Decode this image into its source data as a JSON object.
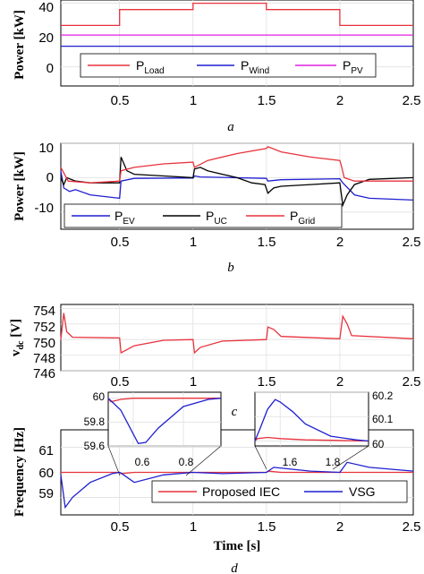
{
  "colors": {
    "load": "#e8323c",
    "wind": "#1f1fd0",
    "pv": "#e020e0",
    "ev": "#1f1fd0",
    "uc": "#000000",
    "grid": "#e8323c",
    "iec": "#e8323c",
    "vsg": "#1f1fd0"
  },
  "chart_data": [
    {
      "id": "a",
      "type": "line",
      "caption": "a",
      "ylabel": "Power [kW]",
      "xlabel": "",
      "xlim": [
        0.1,
        2.5
      ],
      "ylim": [
        -12,
        42
      ],
      "xticks": [
        "0.5",
        "1",
        "1.5",
        "2",
        "2.5"
      ],
      "yticks": [
        "0",
        "20",
        "40"
      ],
      "grid": true,
      "legend_position": "bottom",
      "series": [
        {
          "name": "P",
          "sub": "Load",
          "points": [
            [
              0.1,
              26
            ],
            [
              0.5,
              26
            ],
            [
              0.5,
              36
            ],
            [
              1,
              36
            ],
            [
              1,
              40
            ],
            [
              1.5,
              40
            ],
            [
              1.5,
              36
            ],
            [
              2,
              36
            ],
            [
              2,
              26
            ],
            [
              2.5,
              26
            ]
          ]
        },
        {
          "name": "P",
          "sub": "Wind",
          "points": [
            [
              0.1,
              13
            ],
            [
              2.5,
              13
            ]
          ]
        },
        {
          "name": "P",
          "sub": "PV",
          "points": [
            [
              0.1,
              20
            ],
            [
              2.5,
              20
            ]
          ]
        }
      ]
    },
    {
      "id": "b",
      "type": "line",
      "caption": "b",
      "ylabel": "Power [kW]",
      "xlabel": "",
      "xlim": [
        0.1,
        2.5
      ],
      "ylim": [
        -15,
        10
      ],
      "xticks": [
        "0.5",
        "1",
        "1.5",
        "2",
        "2.5"
      ],
      "yticks": [
        "-10",
        "0",
        "10"
      ],
      "grid": true,
      "legend_position": "bottom",
      "series": [
        {
          "name": "P",
          "sub": "EV",
          "points": [
            [
              0.1,
              2
            ],
            [
              0.12,
              -3
            ],
            [
              0.16,
              -4
            ],
            [
              0.2,
              -3.5
            ],
            [
              0.3,
              -5
            ],
            [
              0.5,
              -6
            ],
            [
              0.51,
              -1
            ],
            [
              0.6,
              -0.2
            ],
            [
              0.9,
              -0.1
            ],
            [
              1.0,
              -0.1
            ],
            [
              1.01,
              0.5
            ],
            [
              1.05,
              0.2
            ],
            [
              1.5,
              -0.2
            ],
            [
              1.51,
              -1
            ],
            [
              1.6,
              -0.6
            ],
            [
              2.0,
              -0.3
            ],
            [
              2.02,
              -1.5
            ],
            [
              2.1,
              -5
            ],
            [
              2.2,
              -6
            ],
            [
              2.5,
              -6.5
            ]
          ]
        },
        {
          "name": "P",
          "sub": "UC",
          "points": [
            [
              0.1,
              0
            ],
            [
              0.12,
              -2
            ],
            [
              0.14,
              0
            ],
            [
              0.2,
              -1
            ],
            [
              0.3,
              -1.5
            ],
            [
              0.5,
              -1.5
            ],
            [
              0.51,
              6
            ],
            [
              0.55,
              2
            ],
            [
              0.6,
              1
            ],
            [
              0.8,
              0.5
            ],
            [
              1.0,
              0
            ],
            [
              1.01,
              2.5
            ],
            [
              1.05,
              3
            ],
            [
              1.1,
              2
            ],
            [
              1.2,
              1
            ],
            [
              1.3,
              0
            ],
            [
              1.4,
              -1.5
            ],
            [
              1.49,
              -2
            ],
            [
              1.51,
              -4.5
            ],
            [
              1.55,
              -3
            ],
            [
              1.6,
              -2.5
            ],
            [
              1.8,
              -2
            ],
            [
              2.0,
              -1.5
            ],
            [
              2.02,
              -8
            ],
            [
              2.05,
              -5
            ],
            [
              2.1,
              -2
            ],
            [
              2.2,
              -0.5
            ],
            [
              2.5,
              0
            ]
          ]
        },
        {
          "name": "P",
          "sub": "Grid",
          "points": [
            [
              0.1,
              3
            ],
            [
              0.15,
              -1
            ],
            [
              0.3,
              -1.5
            ],
            [
              0.5,
              -1
            ],
            [
              0.51,
              2
            ],
            [
              0.6,
              3
            ],
            [
              0.8,
              4
            ],
            [
              1.0,
              4.5
            ],
            [
              1.01,
              3
            ],
            [
              1.1,
              5
            ],
            [
              1.3,
              7
            ],
            [
              1.5,
              8.5
            ],
            [
              1.51,
              9
            ],
            [
              1.6,
              7.5
            ],
            [
              1.8,
              6
            ],
            [
              2.0,
              5
            ],
            [
              2.01,
              3.5
            ],
            [
              2.03,
              0
            ],
            [
              2.1,
              -1
            ],
            [
              2.5,
              -1
            ]
          ]
        }
      ]
    },
    {
      "id": "c",
      "type": "line",
      "caption": "c",
      "ylabel": "v",
      "ylabel_sub": "dc",
      "ylabel_unit": " [V]",
      "xlabel": "",
      "xlim": [
        0.1,
        2.5
      ],
      "ylim": [
        746,
        754.5
      ],
      "xticks": [
        "0.5",
        "1",
        "1.5",
        "2",
        "2.5"
      ],
      "yticks": [
        "746",
        "748",
        "750",
        "752",
        "754"
      ],
      "grid": true,
      "series": [
        {
          "name": "",
          "points": [
            [
              0.1,
              750
            ],
            [
              0.12,
              753.4
            ],
            [
              0.14,
              751
            ],
            [
              0.18,
              750.3
            ],
            [
              0.5,
              750.2
            ],
            [
              0.51,
              748.3
            ],
            [
              0.6,
              749.2
            ],
            [
              0.8,
              749.9
            ],
            [
              1.0,
              750
            ],
            [
              1.01,
              748.3
            ],
            [
              1.05,
              749
            ],
            [
              1.2,
              749.8
            ],
            [
              1.5,
              750
            ],
            [
              1.51,
              751.6
            ],
            [
              1.55,
              751.3
            ],
            [
              1.6,
              750.4
            ],
            [
              2.0,
              750.1
            ],
            [
              2.02,
              753
            ],
            [
              2.05,
              752
            ],
            [
              2.08,
              750.5
            ],
            [
              2.5,
              750.1
            ]
          ]
        }
      ]
    },
    {
      "id": "d",
      "type": "line",
      "caption": "d",
      "ylabel": "Frequency [Hz]",
      "xlabel": "Time [s]",
      "xlim": [
        0.1,
        2.5
      ],
      "ylim": [
        58.3,
        61.7
      ],
      "xticks": [
        "0.5",
        "1",
        "1.5",
        "2",
        "2.5"
      ],
      "yticks": [
        "59",
        "60",
        "61"
      ],
      "grid": true,
      "legend_position": "bottom-right",
      "series": [
        {
          "name": "Proposed IEC",
          "points": [
            [
              0.1,
              60
            ],
            [
              0.5,
              60
            ],
            [
              0.51,
              59.95
            ],
            [
              0.6,
              60
            ],
            [
              1.5,
              60
            ],
            [
              1.51,
              60.05
            ],
            [
              1.6,
              60
            ],
            [
              2.5,
              60
            ]
          ]
        },
        {
          "name": "VSG",
          "points": [
            [
              0.1,
              59.9
            ],
            [
              0.13,
              58.6
            ],
            [
              0.18,
              59
            ],
            [
              0.3,
              59.6
            ],
            [
              0.45,
              59.95
            ],
            [
              0.5,
              60
            ],
            [
              0.51,
              59.97
            ],
            [
              0.6,
              59.6
            ],
            [
              0.8,
              59.9
            ],
            [
              1.0,
              60
            ],
            [
              1.2,
              59.95
            ],
            [
              1.5,
              60
            ],
            [
              1.55,
              60.2
            ],
            [
              1.8,
              60.05
            ],
            [
              2.0,
              60
            ],
            [
              2.05,
              60.4
            ],
            [
              2.2,
              60.2
            ],
            [
              2.5,
              60.05
            ]
          ]
        }
      ],
      "insets": [
        {
          "xlim": [
            0.5,
            0.95
          ],
          "ylim": [
            59.6,
            60.05
          ],
          "xticks": [
            "0.6",
            "0.8"
          ],
          "yticks": [
            "59.6",
            "59.8",
            "60"
          ],
          "series": [
            {
              "name": "Proposed IEC",
              "points": [
                [
                  0.5,
                  60
                ],
                [
                  0.51,
                  59.97
                ],
                [
                  0.55,
                  59.99
                ],
                [
                  0.6,
                  60
                ],
                [
                  0.95,
                  60
                ]
              ]
            },
            {
              "name": "VSG",
              "points": [
                [
                  0.5,
                  60
                ],
                [
                  0.51,
                  59.98
                ],
                [
                  0.55,
                  59.9
                ],
                [
                  0.6,
                  59.7
                ],
                [
                  0.62,
                  59.62
                ],
                [
                  0.65,
                  59.63
                ],
                [
                  0.7,
                  59.75
                ],
                [
                  0.8,
                  59.93
                ],
                [
                  0.9,
                  59.99
                ],
                [
                  0.95,
                  60
                ]
              ]
            }
          ]
        },
        {
          "xlim": [
            1.5,
            1.95
          ],
          "ylim": [
            59.98,
            60.2
          ],
          "xticks": [
            "1.6",
            "1.8"
          ],
          "yticks": [
            "60",
            "60.1",
            "60.2"
          ],
          "series": [
            {
              "name": "Proposed IEC",
              "points": [
                [
                  1.5,
                  60
                ],
                [
                  1.51,
                  60.01
                ],
                [
                  1.55,
                  60.015
                ],
                [
                  1.6,
                  60.01
                ],
                [
                  1.7,
                  60.005
                ],
                [
                  1.8,
                  60.003
                ],
                [
                  1.95,
                  60
                ]
              ]
            },
            {
              "name": "VSG",
              "points": [
                [
                  1.5,
                  60
                ],
                [
                  1.52,
                  60.05
                ],
                [
                  1.55,
                  60.13
                ],
                [
                  1.58,
                  60.17
                ],
                [
                  1.6,
                  60.16
                ],
                [
                  1.65,
                  60.12
                ],
                [
                  1.7,
                  60.07
                ],
                [
                  1.8,
                  60.02
                ],
                [
                  1.9,
                  60.005
                ],
                [
                  1.95,
                  60
                ]
              ]
            }
          ]
        }
      ]
    }
  ]
}
